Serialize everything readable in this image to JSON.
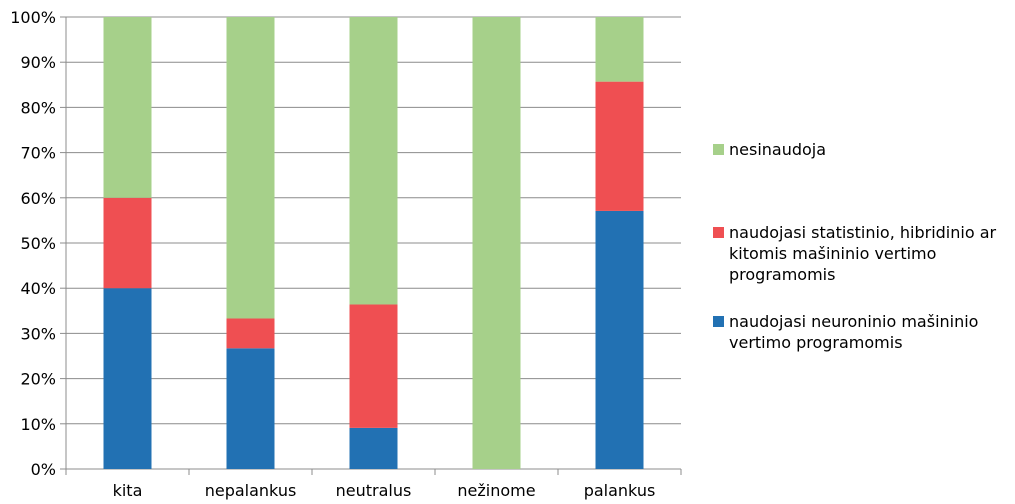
{
  "chart_data": {
    "type": "bar",
    "stacked": true,
    "categories": [
      "kita",
      "nepalankus",
      "neutralus",
      "nežinome",
      "palankus"
    ],
    "series": [
      {
        "name": "naudojasi neuroninio mašininio vertimo programomis",
        "color": "#2271b3",
        "values": [
          40,
          26.7,
          9.1,
          0,
          57.1
        ]
      },
      {
        "name": "naudojasi statistinio, hibridinio ar kitomis mašininio vertimo programomis",
        "color": "#ef4f52",
        "values": [
          20,
          6.6,
          27.3,
          0,
          28.6
        ]
      },
      {
        "name": "nesinaudoja",
        "color": "#a6d08a",
        "values": [
          40,
          66.7,
          63.6,
          100,
          14.3
        ]
      }
    ],
    "ylim": [
      0,
      100
    ],
    "yticks": [
      "0%",
      "10%",
      "20%",
      "30%",
      "40%",
      "50%",
      "60%",
      "70%",
      "80%",
      "90%",
      "100%"
    ],
    "grid": true,
    "legend_position": "right"
  }
}
